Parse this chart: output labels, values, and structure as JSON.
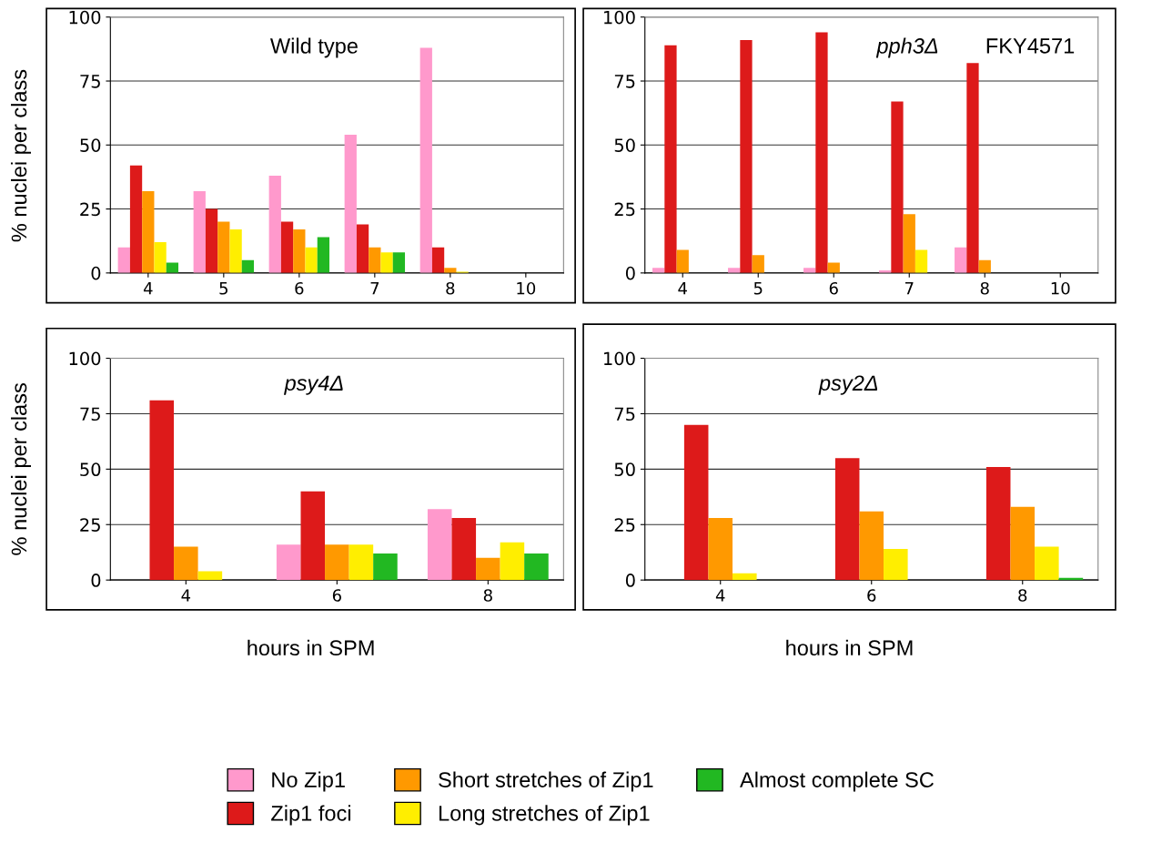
{
  "chart_data": [
    {
      "type": "bar",
      "title": "Wild type",
      "ylabel": "% nuclei per class",
      "categories": [
        "4",
        "5",
        "6",
        "7",
        "8",
        "10"
      ],
      "ylim": [
        0,
        100
      ],
      "yticks": [
        0,
        25,
        50,
        75,
        100
      ],
      "grid": "y",
      "legend": "bottom",
      "series": [
        {
          "name": "No Zip1",
          "color": "#ff99cc",
          "values": [
            10,
            32,
            38,
            54,
            88,
            0
          ]
        },
        {
          "name": "Zip1 foci",
          "color": "#dd1a1a",
          "values": [
            42,
            25,
            20,
            19,
            10,
            0
          ]
        },
        {
          "name": "Short stretches of Zip1",
          "color": "#ff9900",
          "values": [
            32,
            20,
            17,
            10,
            2,
            0
          ]
        },
        {
          "name": "Long stretches of Zip1",
          "color": "#ffee00",
          "values": [
            12,
            17,
            10,
            8,
            0.5,
            0
          ]
        },
        {
          "name": "Almost complete SC",
          "color": "#22b822",
          "values": [
            4,
            5,
            14,
            8,
            0,
            0
          ]
        }
      ]
    },
    {
      "type": "bar",
      "title": "pph3Δ",
      "annotations": [
        "FKY4571"
      ],
      "categories": [
        "4",
        "5",
        "6",
        "7",
        "8",
        "10"
      ],
      "ylim": [
        0,
        100
      ],
      "yticks": [
        0,
        25,
        50,
        75,
        100
      ],
      "grid": "y",
      "series": [
        {
          "color": "#ff99cc",
          "values": [
            2,
            2,
            2,
            1,
            10,
            0
          ]
        },
        {
          "color": "#dd1a1a",
          "values": [
            89,
            91,
            94,
            67,
            82,
            0
          ]
        },
        {
          "color": "#ff9900",
          "values": [
            9,
            7,
            4,
            23,
            5,
            0
          ]
        },
        {
          "color": "#ffee00",
          "values": [
            0,
            0,
            0,
            9,
            0,
            0
          ]
        },
        {
          "color": "#22b822",
          "values": [
            0,
            0,
            0,
            0,
            0,
            0
          ]
        }
      ]
    },
    {
      "type": "bar",
      "title": "psy4Δ",
      "xlabel": "hours in SPM",
      "ylabel": "% nuclei per class",
      "categories": [
        "4",
        "6",
        "8"
      ],
      "ylim": [
        0,
        100
      ],
      "yticks": [
        0,
        25,
        50,
        75,
        100
      ],
      "grid": "y",
      "series": [
        {
          "color": "#ff99cc",
          "values": [
            0,
            16,
            32
          ]
        },
        {
          "color": "#dd1a1a",
          "values": [
            81,
            40,
            28
          ]
        },
        {
          "color": "#ff9900",
          "values": [
            15,
            16,
            10
          ]
        },
        {
          "color": "#ffee00",
          "values": [
            4,
            16,
            17
          ]
        },
        {
          "color": "#22b822",
          "values": [
            0,
            12,
            12
          ]
        }
      ]
    },
    {
      "type": "bar",
      "title": "psy2Δ",
      "xlabel": "hours in SPM",
      "categories": [
        "4",
        "6",
        "8"
      ],
      "ylim": [
        0,
        100
      ],
      "yticks": [
        0,
        25,
        50,
        75,
        100
      ],
      "grid": "y",
      "series": [
        {
          "color": "#ff99cc",
          "values": [
            0,
            0,
            0
          ]
        },
        {
          "color": "#dd1a1a",
          "values": [
            70,
            55,
            51
          ]
        },
        {
          "color": "#ff9900",
          "values": [
            28,
            31,
            33
          ]
        },
        {
          "color": "#ffee00",
          "values": [
            3,
            14,
            15
          ]
        },
        {
          "color": "#22b822",
          "values": [
            0,
            0,
            1
          ]
        }
      ]
    }
  ]
}
